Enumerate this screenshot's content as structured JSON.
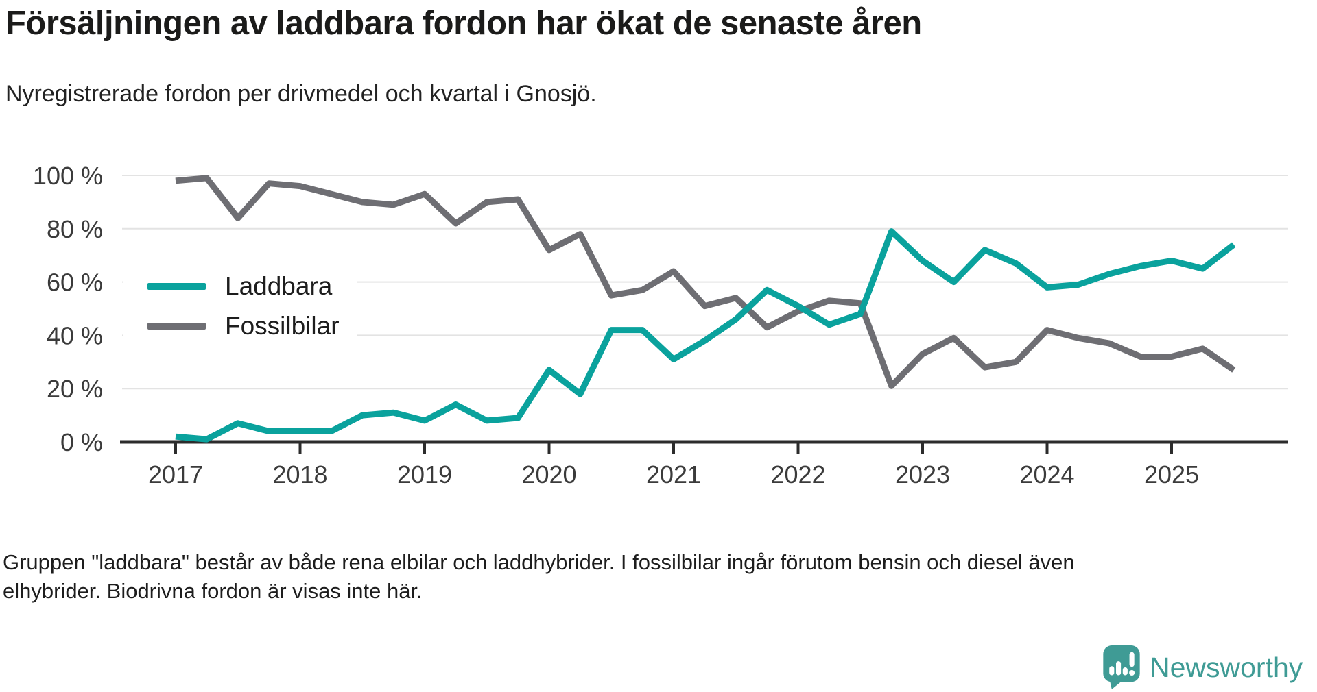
{
  "header": {
    "title": "Försäljningen av laddbara fordon har ökat de senaste åren",
    "subtitle": "Nyregistrerade fordon per drivmedel och kvartal i Gnosjö."
  },
  "chart_data": {
    "type": "line",
    "title": "Försäljningen av laddbara fordon har ökat de senaste åren",
    "subtitle": "Nyregistrerade fordon per drivmedel och kvartal i Gnosjö.",
    "xlabel": "",
    "ylabel": "",
    "ylim": [
      0,
      100
    ],
    "grid": "horizontal",
    "legend_position": "inside-left",
    "x_ticks": [
      "2017",
      "2018",
      "2019",
      "2020",
      "2021",
      "2022",
      "2023",
      "2024",
      "2025"
    ],
    "y_ticks": [
      {
        "value": 0,
        "label": "0 %"
      },
      {
        "value": 20,
        "label": "20 %"
      },
      {
        "value": 40,
        "label": "40 %"
      },
      {
        "value": 60,
        "label": "60 %"
      },
      {
        "value": 80,
        "label": "80 %"
      },
      {
        "value": 100,
        "label": "100 %"
      }
    ],
    "categories": [
      "2017 Q1",
      "2017 Q2",
      "2017 Q3",
      "2017 Q4",
      "2018 Q1",
      "2018 Q2",
      "2018 Q3",
      "2018 Q4",
      "2019 Q1",
      "2019 Q2",
      "2019 Q3",
      "2019 Q4",
      "2020 Q1",
      "2020 Q2",
      "2020 Q3",
      "2020 Q4",
      "2021 Q1",
      "2021 Q2",
      "2021 Q3",
      "2021 Q4",
      "2022 Q1",
      "2022 Q2",
      "2022 Q3",
      "2022 Q4",
      "2023 Q1",
      "2023 Q2",
      "2023 Q3",
      "2023 Q4",
      "2024 Q1",
      "2024 Q2",
      "2024 Q3",
      "2024 Q4",
      "2025 Q1",
      "2025 Q2",
      "2025 Q3"
    ],
    "series": [
      {
        "name": "Laddbara",
        "color": "#0aa29d",
        "values": [
          2,
          1,
          7,
          4,
          4,
          4,
          10,
          11,
          8,
          14,
          8,
          9,
          27,
          18,
          42,
          42,
          31,
          38,
          46,
          57,
          51,
          44,
          48,
          79,
          68,
          60,
          72,
          67,
          58,
          59,
          63,
          66,
          68,
          65,
          74
        ]
      },
      {
        "name": "Fossilbilar",
        "color": "#6e6e73",
        "values": [
          98,
          99,
          84,
          97,
          96,
          93,
          90,
          89,
          93,
          82,
          90,
          91,
          72,
          78,
          55,
          57,
          64,
          51,
          54,
          43,
          49,
          53,
          52,
          21,
          33,
          39,
          28,
          30,
          42,
          39,
          37,
          32,
          32,
          35,
          27
        ]
      }
    ],
    "unit": "%"
  },
  "colors": {
    "accent_teal": "#0aa29d",
    "series_gray": "#6e6e73",
    "gridline": "#e3e3e3",
    "axis": "#2c2c2c",
    "tick_label": "#3b3b3b",
    "brand_teal": "#3f9b95"
  },
  "footer": {
    "lines": [
      "Gruppen \"laddbara\" består av både rena elbilar och laddhybrider. I fossilbilar ingår förutom bensin och diesel även",
      "elhybrider. Biodrivna fordon är visas inte här."
    ],
    "brand": "Newsworthy"
  }
}
